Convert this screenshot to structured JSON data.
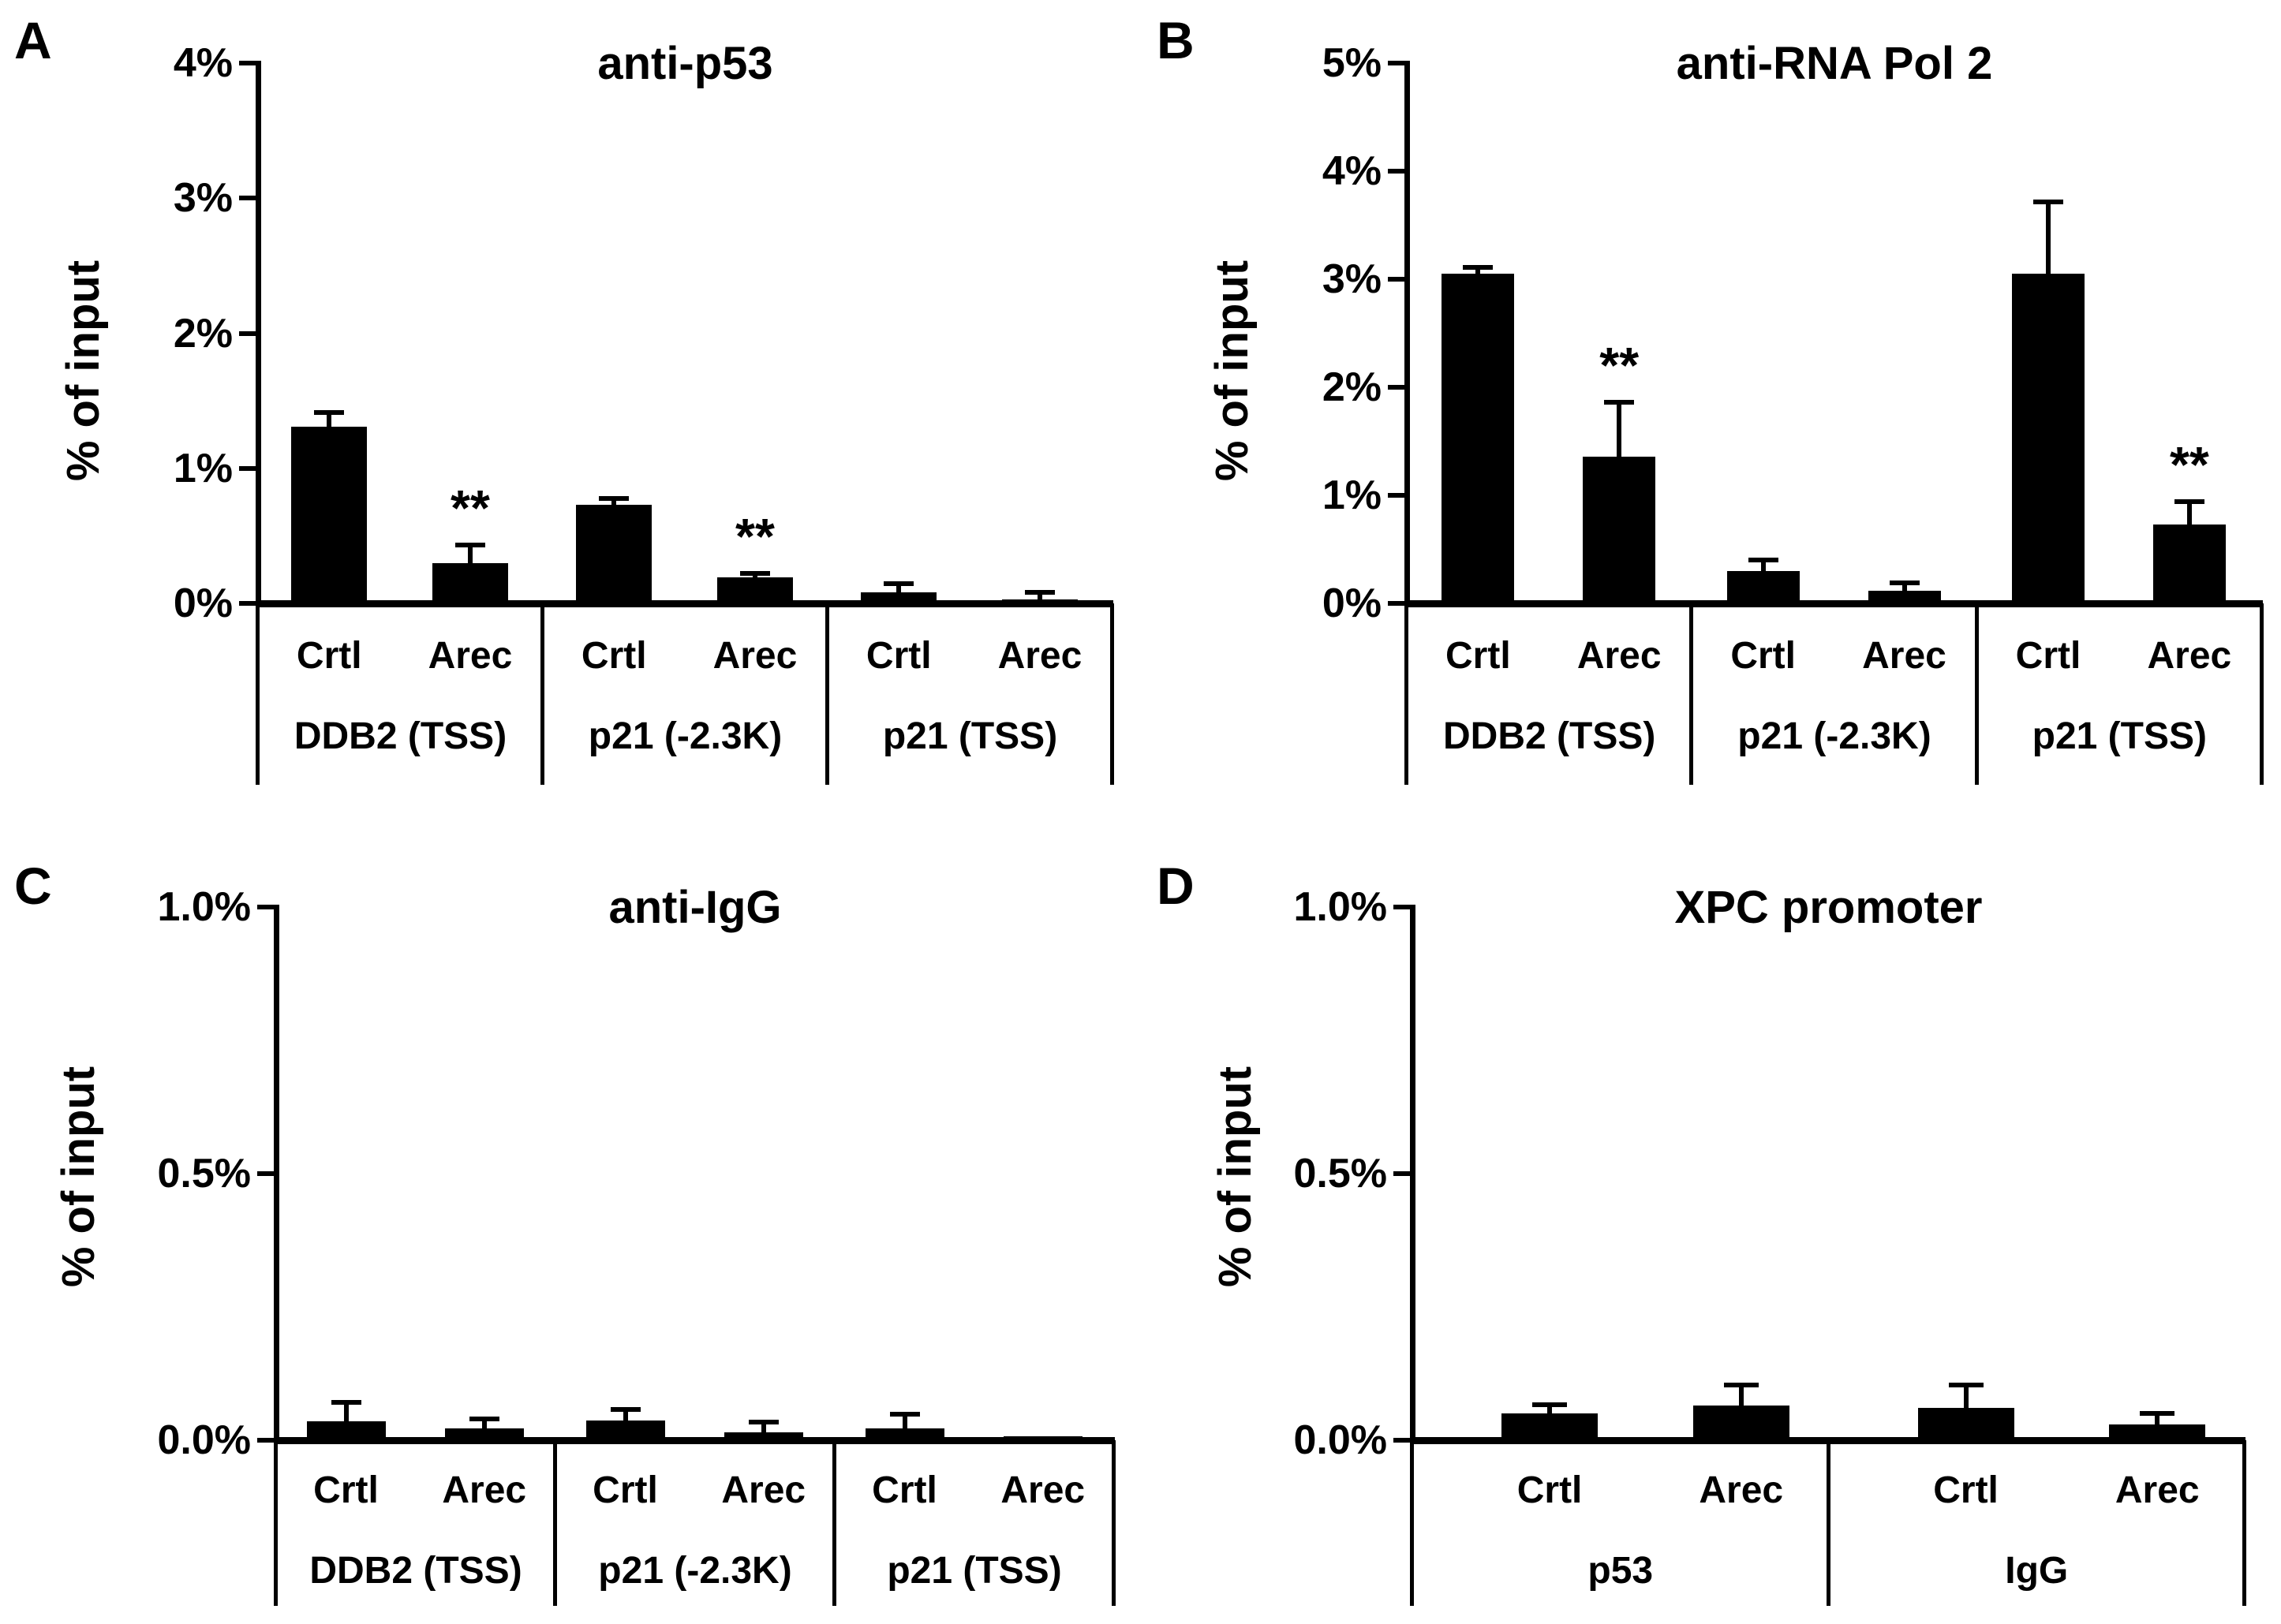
{
  "figure_background": "#ffffff",
  "bar_color": "#000000",
  "axis_color": "#000000",
  "chart_data": [
    {
      "panel": "A",
      "type": "bar",
      "title": "anti-p53",
      "ylabel": "% of input",
      "ylim": [
        0,
        4
      ],
      "grid": false,
      "legend": false,
      "yticks": [
        {
          "value": 0,
          "label": "0%"
        },
        {
          "value": 1,
          "label": "1%"
        },
        {
          "value": 2,
          "label": "2%"
        },
        {
          "value": 3,
          "label": "3%"
        },
        {
          "value": 4,
          "label": "4%"
        }
      ],
      "conditions": [
        "Crtl",
        "Arec"
      ],
      "groups": [
        {
          "label": "DDB2 (TSS)",
          "bars": [
            {
              "condition": "Crtl",
              "value": 1.31,
              "error": 0.11,
              "sig": ""
            },
            {
              "condition": "Arec",
              "value": 0.3,
              "error": 0.14,
              "sig": "**"
            }
          ]
        },
        {
          "label": "p21 (-2.3K)",
          "bars": [
            {
              "condition": "Crtl",
              "value": 0.73,
              "error": 0.05,
              "sig": ""
            },
            {
              "condition": "Arec",
              "value": 0.19,
              "error": 0.04,
              "sig": "**"
            }
          ]
        },
        {
          "label": "p21 (TSS)",
          "bars": [
            {
              "condition": "Crtl",
              "value": 0.08,
              "error": 0.07,
              "sig": ""
            },
            {
              "condition": "Arec",
              "value": 0.03,
              "error": 0.06,
              "sig": ""
            }
          ]
        }
      ]
    },
    {
      "panel": "B",
      "type": "bar",
      "title": "anti-RNA Pol 2",
      "ylabel": "% of input",
      "ylim": [
        0,
        5
      ],
      "grid": false,
      "legend": false,
      "yticks": [
        {
          "value": 0,
          "label": "0%"
        },
        {
          "value": 1,
          "label": "1%"
        },
        {
          "value": 2,
          "label": "2%"
        },
        {
          "value": 3,
          "label": "3%"
        },
        {
          "value": 4,
          "label": "4%"
        },
        {
          "value": 5,
          "label": "5%"
        }
      ],
      "conditions": [
        "Crtl",
        "Arec"
      ],
      "groups": [
        {
          "label": "DDB2 (TSS)",
          "bars": [
            {
              "condition": "Crtl",
              "value": 3.05,
              "error": 0.07,
              "sig": ""
            },
            {
              "condition": "Arec",
              "value": 1.36,
              "error": 0.51,
              "sig": "**"
            }
          ]
        },
        {
          "label": "p21 (-2.3K)",
          "bars": [
            {
              "condition": "Crtl",
              "value": 0.3,
              "error": 0.11,
              "sig": ""
            },
            {
              "condition": "Arec",
              "value": 0.12,
              "error": 0.08,
              "sig": ""
            }
          ]
        },
        {
          "label": "p21 (TSS)",
          "bars": [
            {
              "condition": "Crtl",
              "value": 3.05,
              "error": 0.67,
              "sig": ""
            },
            {
              "condition": "Arec",
              "value": 0.73,
              "error": 0.22,
              "sig": "**"
            }
          ]
        }
      ]
    },
    {
      "panel": "C",
      "type": "bar",
      "title": "anti-IgG",
      "ylabel": "% of input",
      "ylim": [
        0,
        1
      ],
      "grid": false,
      "legend": false,
      "yticks": [
        {
          "value": 0,
          "label": "0.0%"
        },
        {
          "value": 0.5,
          "label": "0.5%"
        },
        {
          "value": 1,
          "label": "1.0%"
        }
      ],
      "conditions": [
        "Crtl",
        "Arec"
      ],
      "groups": [
        {
          "label": "DDB2 (TSS)",
          "bars": [
            {
              "condition": "Crtl",
              "value": 0.035,
              "error": 0.038,
              "sig": ""
            },
            {
              "condition": "Arec",
              "value": 0.022,
              "error": 0.02,
              "sig": ""
            }
          ]
        },
        {
          "label": "p21 (-2.3K)",
          "bars": [
            {
              "condition": "Crtl",
              "value": 0.037,
              "error": 0.022,
              "sig": ""
            },
            {
              "condition": "Arec",
              "value": 0.015,
              "error": 0.02,
              "sig": ""
            }
          ]
        },
        {
          "label": "p21 (TSS)",
          "bars": [
            {
              "condition": "Crtl",
              "value": 0.022,
              "error": 0.028,
              "sig": ""
            },
            {
              "condition": "Arec",
              "value": 0.008,
              "error": 0,
              "sig": ""
            }
          ]
        }
      ]
    },
    {
      "panel": "D",
      "type": "bar",
      "title": "XPC promoter",
      "ylabel": "% of input",
      "ylim": [
        0,
        1
      ],
      "grid": false,
      "legend": false,
      "yticks": [
        {
          "value": 0,
          "label": "0.0%"
        },
        {
          "value": 0.5,
          "label": "0.5%"
        },
        {
          "value": 1,
          "label": "1.0%"
        }
      ],
      "conditions": [
        "Crtl",
        "Arec"
      ],
      "groups": [
        {
          "label": "p53",
          "bars": [
            {
              "condition": "Crtl",
              "value": 0.05,
              "error": 0.018,
              "sig": ""
            },
            {
              "condition": "Arec",
              "value": 0.065,
              "error": 0.04,
              "sig": ""
            }
          ]
        },
        {
          "label": "IgG",
          "bars": [
            {
              "condition": "Crtl",
              "value": 0.06,
              "error": 0.045,
              "sig": ""
            },
            {
              "condition": "Arec",
              "value": 0.03,
              "error": 0.022,
              "sig": ""
            }
          ]
        }
      ]
    }
  ]
}
